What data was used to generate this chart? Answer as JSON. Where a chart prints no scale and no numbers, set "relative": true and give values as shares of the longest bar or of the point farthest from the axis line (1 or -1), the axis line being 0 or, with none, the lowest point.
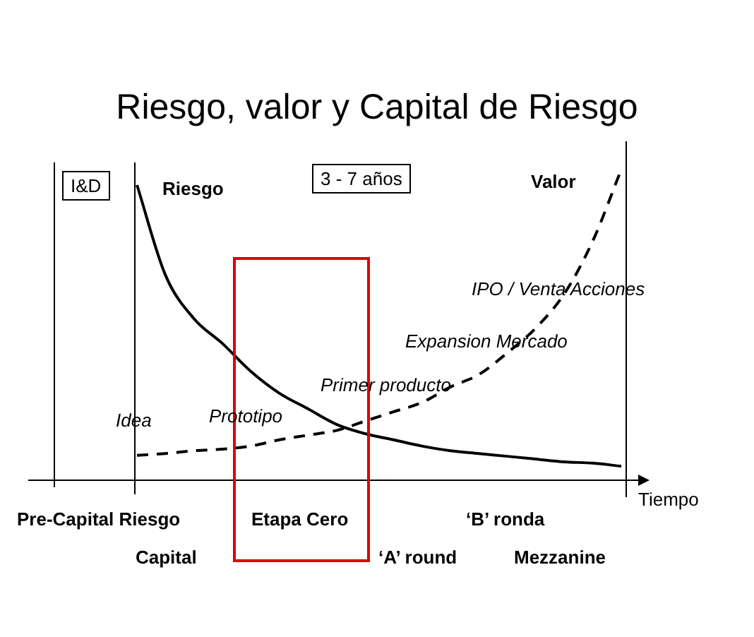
{
  "chart_data": {
    "type": "line",
    "title": "Riesgo, valor y Capital de Riesgo",
    "xlabel": "Tiempo",
    "relative": true,
    "legend": false,
    "marker": "none",
    "categories": [
      null,
      null,
      null,
      null,
      null,
      null,
      null,
      null,
      null,
      null,
      null,
      null,
      null,
      null,
      null,
      null,
      null,
      null
    ],
    "series": [
      {
        "name": "Riesgo",
        "color": "#000000",
        "line_style": "solid",
        "values": [
          0.95,
          0.66,
          0.52,
          0.44,
          0.35,
          0.28,
          0.23,
          0.18,
          0.15,
          0.13,
          0.11,
          0.095,
          0.086,
          0.077,
          0.068,
          0.059,
          0.055,
          0.045
        ]
      },
      {
        "name": "Valor",
        "color": "#000000",
        "line_style": "dashed",
        "values": [
          0.08,
          0.086,
          0.095,
          0.1,
          0.11,
          0.13,
          0.145,
          0.16,
          0.19,
          0.22,
          0.25,
          0.3,
          0.34,
          0.41,
          0.49,
          0.6,
          0.77,
          1.0
        ]
      }
    ],
    "annotations": [
      "I&D",
      "3 - 7 años",
      "IPO / Venta Acciones",
      "Expansion Mercado",
      "Primer producto",
      "Prototipo",
      "Idea",
      "Pre-Capital Riesgo",
      "Capital",
      "Etapa Cero",
      "‘A’ round",
      "‘B’ ronda",
      "Mezzanine"
    ]
  }
}
